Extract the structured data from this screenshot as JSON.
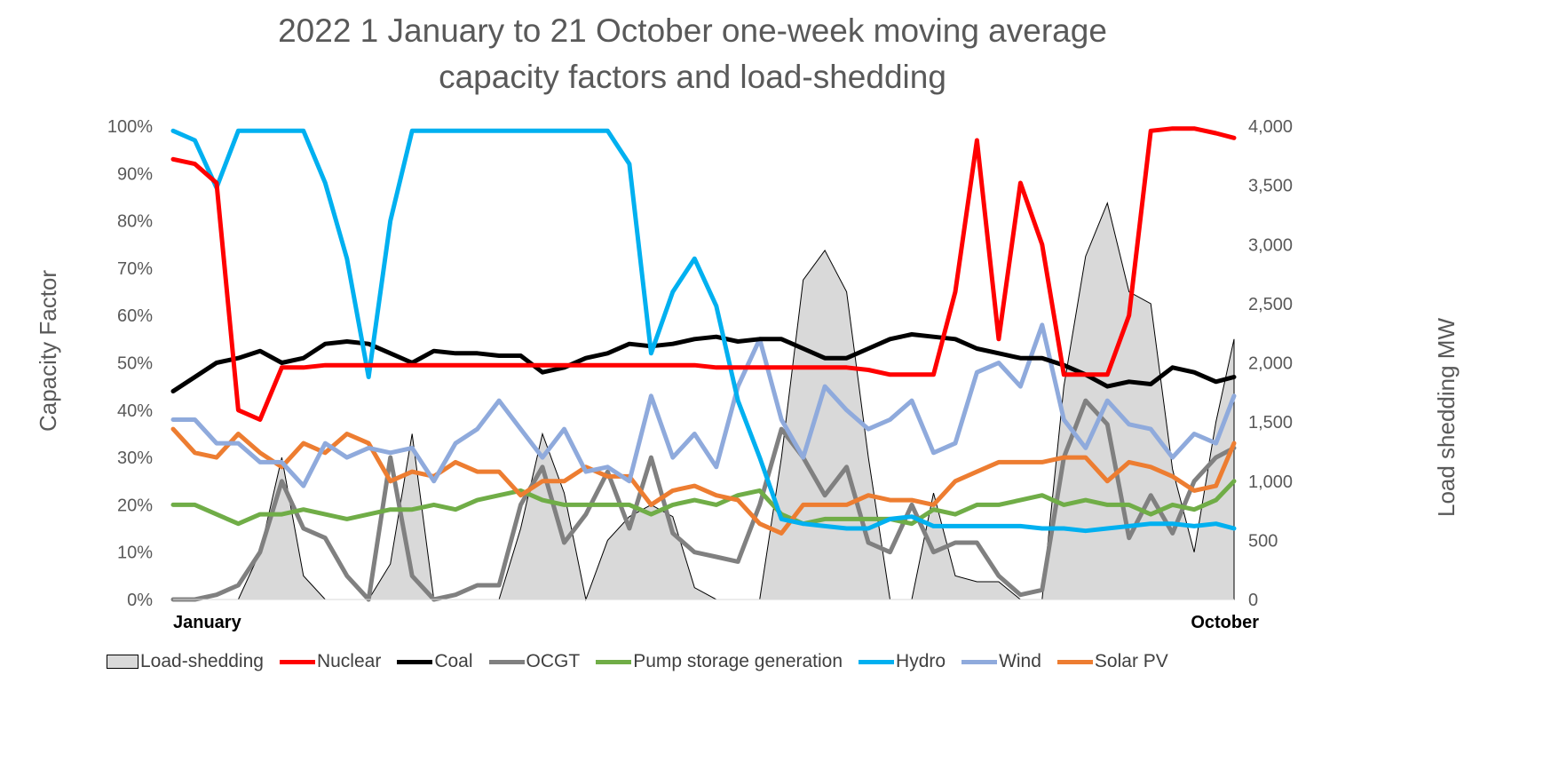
{
  "chart_data": {
    "type": "line",
    "title": [
      "2022 1 January to 21 October one-week moving average",
      "capacity factors and load-shedding"
    ],
    "left_axis": {
      "label": "Capacity Factor",
      "range": [
        0,
        100
      ],
      "ticks": [
        "0%",
        "10%",
        "20%",
        "30%",
        "40%",
        "50%",
        "60%",
        "70%",
        "80%",
        "90%",
        "100%"
      ]
    },
    "right_axis": {
      "label": "Load shedding MW",
      "range": [
        0,
        4000
      ],
      "ticks": [
        "0",
        "500",
        "1,000",
        "1,500",
        "2,000",
        "2,500",
        "3,000",
        "3,500",
        "4,000"
      ]
    },
    "x_tick_labels": [
      "January",
      "October"
    ],
    "x_range": [
      "2022-01-01",
      "2022-10-21"
    ],
    "grid": false,
    "legend_position": "bottom",
    "dates": [
      "2022-01-01",
      "2022-01-07",
      "2022-01-13",
      "2022-01-19",
      "2022-01-25",
      "2022-01-31",
      "2022-02-06",
      "2022-02-12",
      "2022-02-18",
      "2022-02-24",
      "2022-03-02",
      "2022-03-08",
      "2022-03-14",
      "2022-03-20",
      "2022-03-26",
      "2022-04-01",
      "2022-04-07",
      "2022-04-13",
      "2022-04-19",
      "2022-04-25",
      "2022-05-01",
      "2022-05-07",
      "2022-05-13",
      "2022-05-19",
      "2022-05-25",
      "2022-05-31",
      "2022-06-06",
      "2022-06-12",
      "2022-06-18",
      "2022-06-24",
      "2022-06-30",
      "2022-07-06",
      "2022-07-12",
      "2022-07-18",
      "2022-07-24",
      "2022-07-30",
      "2022-08-05",
      "2022-08-11",
      "2022-08-17",
      "2022-08-23",
      "2022-08-29",
      "2022-09-04",
      "2022-09-10",
      "2022-09-16",
      "2022-09-22",
      "2022-09-28",
      "2022-10-04",
      "2022-10-10",
      "2022-10-16",
      "2022-10-21"
    ],
    "area_series": {
      "name": "Load-shedding",
      "axis": "right",
      "color": "#d9d9d9",
      "values": [
        0,
        0,
        0,
        0,
        400,
        1200,
        200,
        0,
        0,
        0,
        300,
        1400,
        0,
        0,
        0,
        0,
        600,
        1400,
        900,
        0,
        500,
        700,
        800,
        700,
        100,
        0,
        0,
        0,
        1200,
        2700,
        2950,
        2600,
        1200,
        0,
        0,
        900,
        200,
        150,
        150,
        0,
        0,
        1800,
        2900,
        3350,
        2600,
        2500,
        1100,
        400,
        1500,
        2200
      ]
    },
    "series": [
      {
        "name": "Nuclear",
        "color": "#ff0000",
        "values": [
          93,
          92,
          88,
          40,
          38,
          49,
          49,
          49.5,
          49.5,
          49.5,
          49.5,
          49.5,
          49.5,
          49.5,
          49.5,
          49.5,
          49.5,
          49.5,
          49.5,
          49.5,
          49.5,
          49.5,
          49.5,
          49.5,
          49.5,
          49,
          49,
          49,
          49,
          49,
          49,
          49,
          48.5,
          47.5,
          47.5,
          47.5,
          65,
          97,
          55,
          88,
          75,
          47.5,
          47.5,
          47.5,
          60,
          99,
          99.5,
          99.5,
          98.5,
          97.5
        ]
      },
      {
        "name": "Coal",
        "color": "#000000",
        "values": [
          44,
          47,
          50,
          51,
          52.5,
          50,
          51,
          54,
          54.5,
          54,
          52,
          50,
          52.5,
          52,
          52,
          51.5,
          51.5,
          48,
          49,
          51,
          52,
          54,
          53.5,
          54,
          55,
          55.5,
          54.5,
          55,
          55,
          53,
          51,
          51,
          53,
          55,
          56,
          55.5,
          55,
          53,
          52,
          51,
          51,
          49.5,
          47.5,
          45,
          46,
          45.5,
          49,
          48,
          46,
          47
        ]
      },
      {
        "name": "OCGT",
        "color": "#808080",
        "values": [
          0,
          0,
          1,
          3,
          10,
          25,
          15,
          13,
          5,
          0,
          30,
          5,
          0,
          1,
          3,
          3,
          20,
          28,
          12,
          18,
          27,
          15,
          30,
          14,
          10,
          9,
          8,
          20,
          36,
          30,
          22,
          28,
          12,
          10,
          20,
          10,
          12,
          12,
          5,
          1,
          2,
          30,
          42,
          37,
          13,
          22,
          14,
          25,
          30,
          32
        ]
      },
      {
        "name": "Pump storage generation",
        "color": "#70ad47",
        "values": [
          20,
          20,
          18,
          16,
          18,
          18,
          19,
          18,
          17,
          18,
          19,
          19,
          20,
          19,
          21,
          22,
          23,
          21,
          20,
          20,
          20,
          20,
          18,
          20,
          21,
          20,
          22,
          23,
          18,
          16,
          17,
          17,
          17,
          17,
          16,
          19,
          18,
          20,
          20,
          21,
          22,
          20,
          21,
          20,
          20,
          18,
          20,
          19,
          21,
          25
        ]
      },
      {
        "name": "Hydro",
        "color": "#00b0f0",
        "values": [
          99,
          97,
          87,
          99,
          99,
          99,
          99,
          88,
          72,
          47,
          80,
          99,
          99,
          99,
          99,
          99,
          99,
          99,
          99,
          99,
          99,
          92,
          52,
          65,
          72,
          62,
          42,
          30,
          17,
          16,
          15.5,
          15,
          15,
          17,
          17.5,
          15.5,
          15.5,
          15.5,
          15.5,
          15.5,
          15,
          15,
          14.5,
          15,
          15.5,
          16,
          16,
          15.5,
          16,
          15
        ]
      },
      {
        "name": "Wind",
        "color": "#8faadc",
        "values": [
          38,
          38,
          33,
          33,
          29,
          29,
          24,
          33,
          30,
          32,
          31,
          32,
          25,
          33,
          36,
          42,
          36,
          30,
          36,
          27,
          28,
          25,
          43,
          30,
          35,
          28,
          45,
          55,
          38,
          30,
          45,
          40,
          36,
          38,
          42,
          31,
          33,
          48,
          50,
          45,
          58,
          38,
          32,
          42,
          37,
          36,
          30,
          35,
          33,
          43
        ]
      },
      {
        "name": "Solar PV",
        "color": "#ed7d31",
        "values": [
          36,
          31,
          30,
          35,
          31,
          28,
          33,
          31,
          35,
          33,
          25,
          27,
          26,
          29,
          27,
          27,
          22,
          25,
          25,
          28,
          26,
          26,
          20,
          23,
          24,
          22,
          21,
          16,
          14,
          20,
          20,
          20,
          22,
          21,
          21,
          20,
          25,
          27,
          29,
          29,
          29,
          30,
          30,
          25,
          29,
          28,
          26,
          23,
          24,
          33
        ]
      }
    ]
  }
}
